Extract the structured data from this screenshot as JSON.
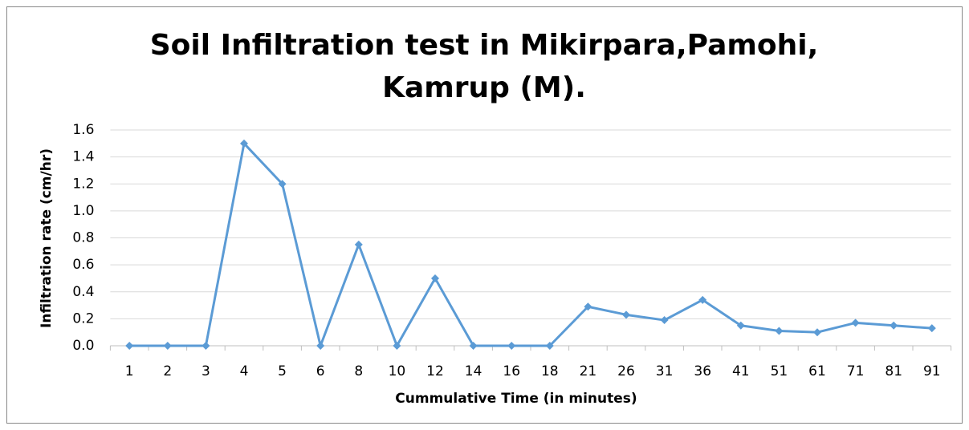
{
  "chart_data": {
    "type": "line",
    "title": [
      "Soil Infiltration test in Mikirpara,Pamohi,",
      "Kamrup (M)."
    ],
    "x_label": "Cummulative Time (in minutes)",
    "y_label": "Infiltration rate (cm/hr)",
    "categories": [
      "1",
      "2",
      "3",
      "4",
      "5",
      "6",
      "8",
      "10",
      "12",
      "14",
      "16",
      "18",
      "21",
      "26",
      "31",
      "36",
      "41",
      "51",
      "61",
      "71",
      "81",
      "91"
    ],
    "series": [
      {
        "name": "Infiltration rate",
        "color": "#5b9bd5",
        "values": [
          0,
          0,
          0,
          1.5,
          1.2,
          0,
          0.75,
          0,
          0.5,
          0,
          0,
          0,
          0.29,
          0.23,
          0.19,
          0.34,
          0.15,
          0.11,
          0.1,
          0.17,
          0.15,
          0.13
        ]
      }
    ],
    "ylim": [
      0,
      1.6
    ],
    "yticks": [
      {
        "value": 0,
        "label": "0.0"
      },
      {
        "value": 0.2,
        "label": "0.2"
      },
      {
        "value": 0.4,
        "label": "0.4"
      },
      {
        "value": 0.6,
        "label": "0.6"
      },
      {
        "value": 0.8,
        "label": "0.8"
      },
      {
        "value": 1,
        "label": "1.0"
      },
      {
        "value": 1.2,
        "label": "1.2"
      },
      {
        "value": 1.4,
        "label": "1.4"
      },
      {
        "value": 1.6,
        "label": "1.6"
      }
    ],
    "grid": true
  }
}
